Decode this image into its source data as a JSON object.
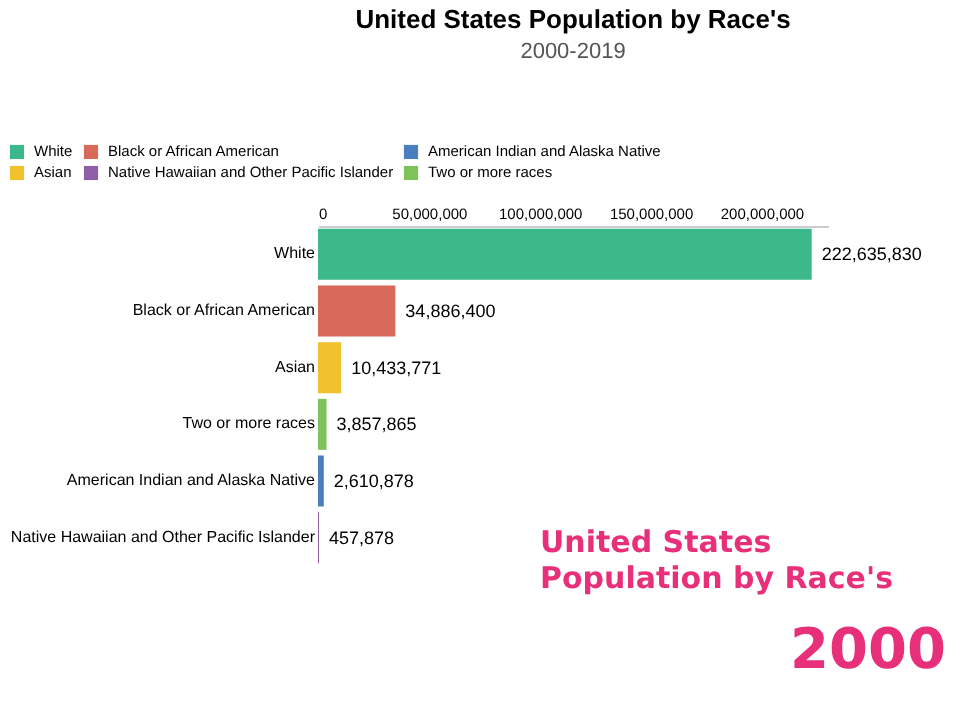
{
  "chart_data": {
    "type": "bar",
    "orientation": "horizontal",
    "title": "United States Population by Race's",
    "subtitle": "2000-2019",
    "categories": [
      "White",
      "Black or African American",
      "Asian",
      "Two or more races",
      "American Indian and Alaska Native",
      "Native Hawaiian and Other Pacific Islander"
    ],
    "series": [
      {
        "name": "White",
        "color": "#3cb98a",
        "values": [
          222635830,
          null,
          null,
          null,
          null,
          null
        ],
        "value_labels": [
          "222,635,830",
          null,
          null,
          null,
          null,
          null
        ]
      },
      {
        "name": "Black or African American",
        "color": "#d9695a",
        "values": [
          null,
          34886400,
          null,
          null,
          null,
          null
        ],
        "value_labels": [
          null,
          "34,886,400",
          null,
          null,
          null,
          null
        ]
      },
      {
        "name": "American Indian and Alaska Native",
        "color": "#4a7fbf",
        "values": [
          null,
          null,
          null,
          null,
          2610878,
          null
        ],
        "value_labels": [
          null,
          null,
          null,
          null,
          "2,610,878",
          null
        ]
      },
      {
        "name": "Asian",
        "color": "#f2c12e",
        "values": [
          null,
          null,
          10433771,
          null,
          null,
          null
        ],
        "value_labels": [
          null,
          null,
          "10,433,771",
          null,
          null,
          null
        ]
      },
      {
        "name": "Native Hawaiian and Other Pacific Islander",
        "color": "#8e5ea8",
        "values": [
          null,
          null,
          null,
          null,
          null,
          457878
        ],
        "value_labels": [
          null,
          null,
          null,
          null,
          null,
          "457,878"
        ]
      },
      {
        "name": "Two or more races",
        "color": "#7ec35a",
        "values": [
          null,
          null,
          null,
          3857865,
          null,
          null
        ],
        "value_labels": [
          null,
          null,
          null,
          "3,857,865",
          null,
          null
        ]
      }
    ],
    "xlim": [
      0,
      230000000
    ],
    "xticks": [
      {
        "value": 0,
        "label": "0"
      },
      {
        "value": 50000000,
        "label": "50,000,000"
      },
      {
        "value": 100000000,
        "label": "100,000,000"
      },
      {
        "value": 150000000,
        "label": "150,000,000"
      },
      {
        "value": 200000000,
        "label": "200,000,000"
      }
    ],
    "legend": "top",
    "grid": false,
    "annotations": [
      "United States",
      "Population by Race's",
      "2000"
    ]
  }
}
